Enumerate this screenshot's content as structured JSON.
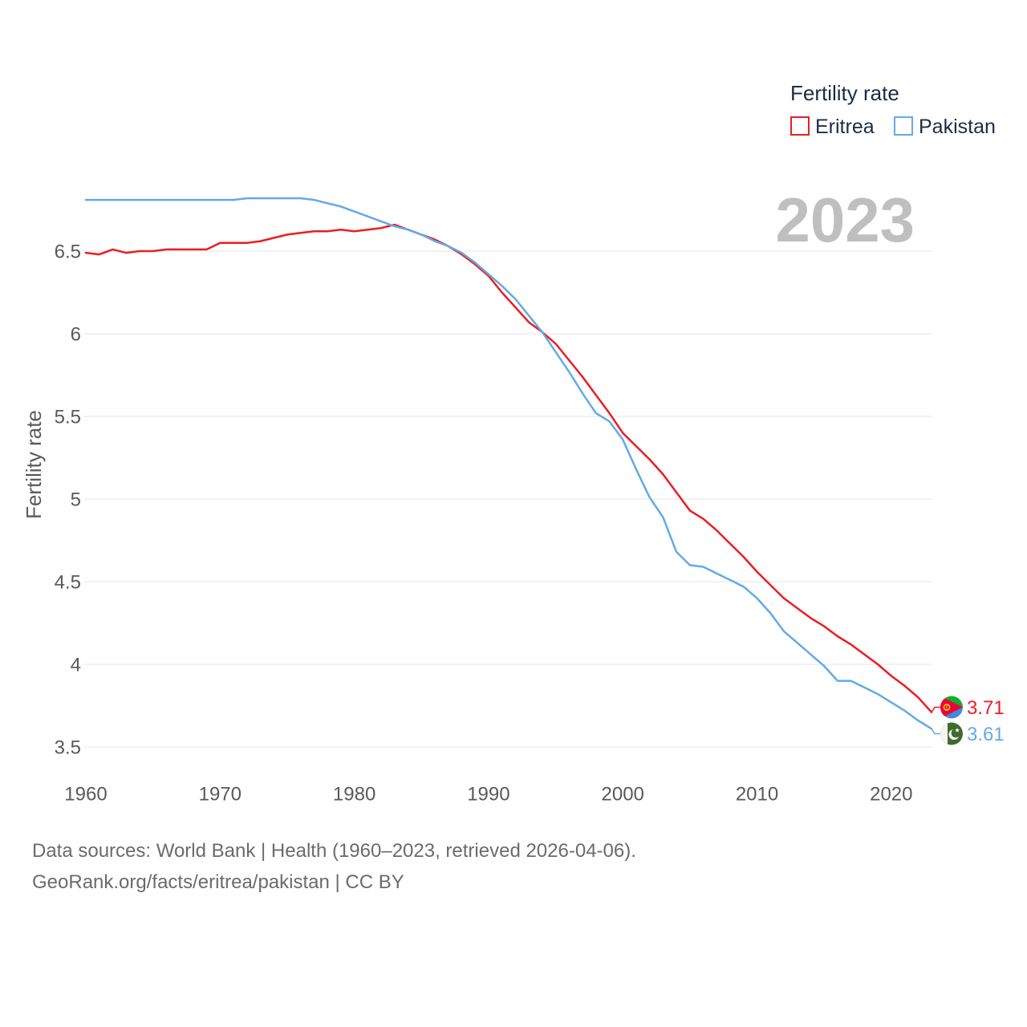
{
  "chart_data": {
    "type": "line",
    "legend_title": "Fertility rate",
    "legend_position": "top-right",
    "ylabel": "Fertility rate",
    "xlabel": "",
    "year_label": "2023",
    "grid": true,
    "xlim": [
      1960,
      2023
    ],
    "ylim": [
      3.5,
      6.85
    ],
    "x": [
      1960,
      1961,
      1962,
      1963,
      1964,
      1965,
      1966,
      1967,
      1968,
      1969,
      1970,
      1971,
      1972,
      1973,
      1974,
      1975,
      1976,
      1977,
      1978,
      1979,
      1980,
      1981,
      1982,
      1983,
      1984,
      1985,
      1986,
      1987,
      1988,
      1989,
      1990,
      1991,
      1992,
      1993,
      1994,
      1995,
      1996,
      1997,
      1998,
      1999,
      2000,
      2001,
      2002,
      2003,
      2004,
      2005,
      2006,
      2007,
      2008,
      2009,
      2010,
      2011,
      2012,
      2013,
      2014,
      2015,
      2016,
      2017,
      2018,
      2019,
      2020,
      2021,
      2022,
      2023
    ],
    "series": [
      {
        "name": "Eritrea",
        "color": "#ed1c24",
        "end_label": "3.71",
        "values": [
          6.49,
          6.48,
          6.51,
          6.49,
          6.5,
          6.5,
          6.51,
          6.51,
          6.51,
          6.51,
          6.55,
          6.55,
          6.55,
          6.56,
          6.58,
          6.6,
          6.61,
          6.62,
          6.62,
          6.63,
          6.62,
          6.63,
          6.64,
          6.66,
          6.63,
          6.6,
          6.57,
          6.53,
          6.48,
          6.42,
          6.35,
          6.25,
          6.16,
          6.07,
          6.01,
          5.94,
          5.84,
          5.74,
          5.63,
          5.52,
          5.4,
          5.32,
          5.24,
          5.15,
          5.04,
          4.93,
          4.88,
          4.81,
          4.73,
          4.65,
          4.56,
          4.48,
          4.4,
          4.34,
          4.28,
          4.23,
          4.17,
          4.12,
          4.06,
          4.0,
          3.93,
          3.87,
          3.8,
          3.71
        ]
      },
      {
        "name": "Pakistan",
        "color": "#63aae9",
        "end_label": "3.61",
        "values": [
          6.81,
          6.81,
          6.81,
          6.81,
          6.81,
          6.81,
          6.81,
          6.81,
          6.81,
          6.81,
          6.81,
          6.81,
          6.82,
          6.82,
          6.82,
          6.82,
          6.82,
          6.81,
          6.79,
          6.77,
          6.74,
          6.71,
          6.68,
          6.65,
          6.63,
          6.6,
          6.56,
          6.53,
          6.49,
          6.43,
          6.36,
          6.29,
          6.21,
          6.11,
          6.01,
          5.89,
          5.77,
          5.64,
          5.52,
          5.47,
          5.36,
          5.18,
          5.01,
          4.89,
          4.68,
          4.6,
          4.59,
          4.55,
          4.51,
          4.47,
          4.4,
          4.31,
          4.2,
          4.13,
          4.06,
          3.99,
          3.9,
          3.9,
          3.86,
          3.82,
          3.77,
          3.72,
          3.66,
          3.61
        ]
      }
    ],
    "yticks": [
      3.5,
      4,
      4.5,
      5,
      5.5,
      6,
      6.5
    ],
    "ytick_labels": [
      "3.5",
      "4",
      "4.5",
      "5",
      "5.5",
      "6",
      "6.5"
    ],
    "xticks": [
      1960,
      1970,
      1980,
      1990,
      2000,
      2010,
      2020
    ],
    "xtick_labels": [
      "1960",
      "1970",
      "1980",
      "1990",
      "2000",
      "2010",
      "2020"
    ]
  },
  "icons": {
    "eritrea": "eritrea-flag-icon",
    "pakistan": "pakistan-flag-icon"
  },
  "footer": {
    "sources": "Data sources: World Bank | Health (1960–2023, retrieved 2026-04-06).",
    "attribution": "GeoRank.org/facts/eritrea/pakistan | CC BY"
  }
}
